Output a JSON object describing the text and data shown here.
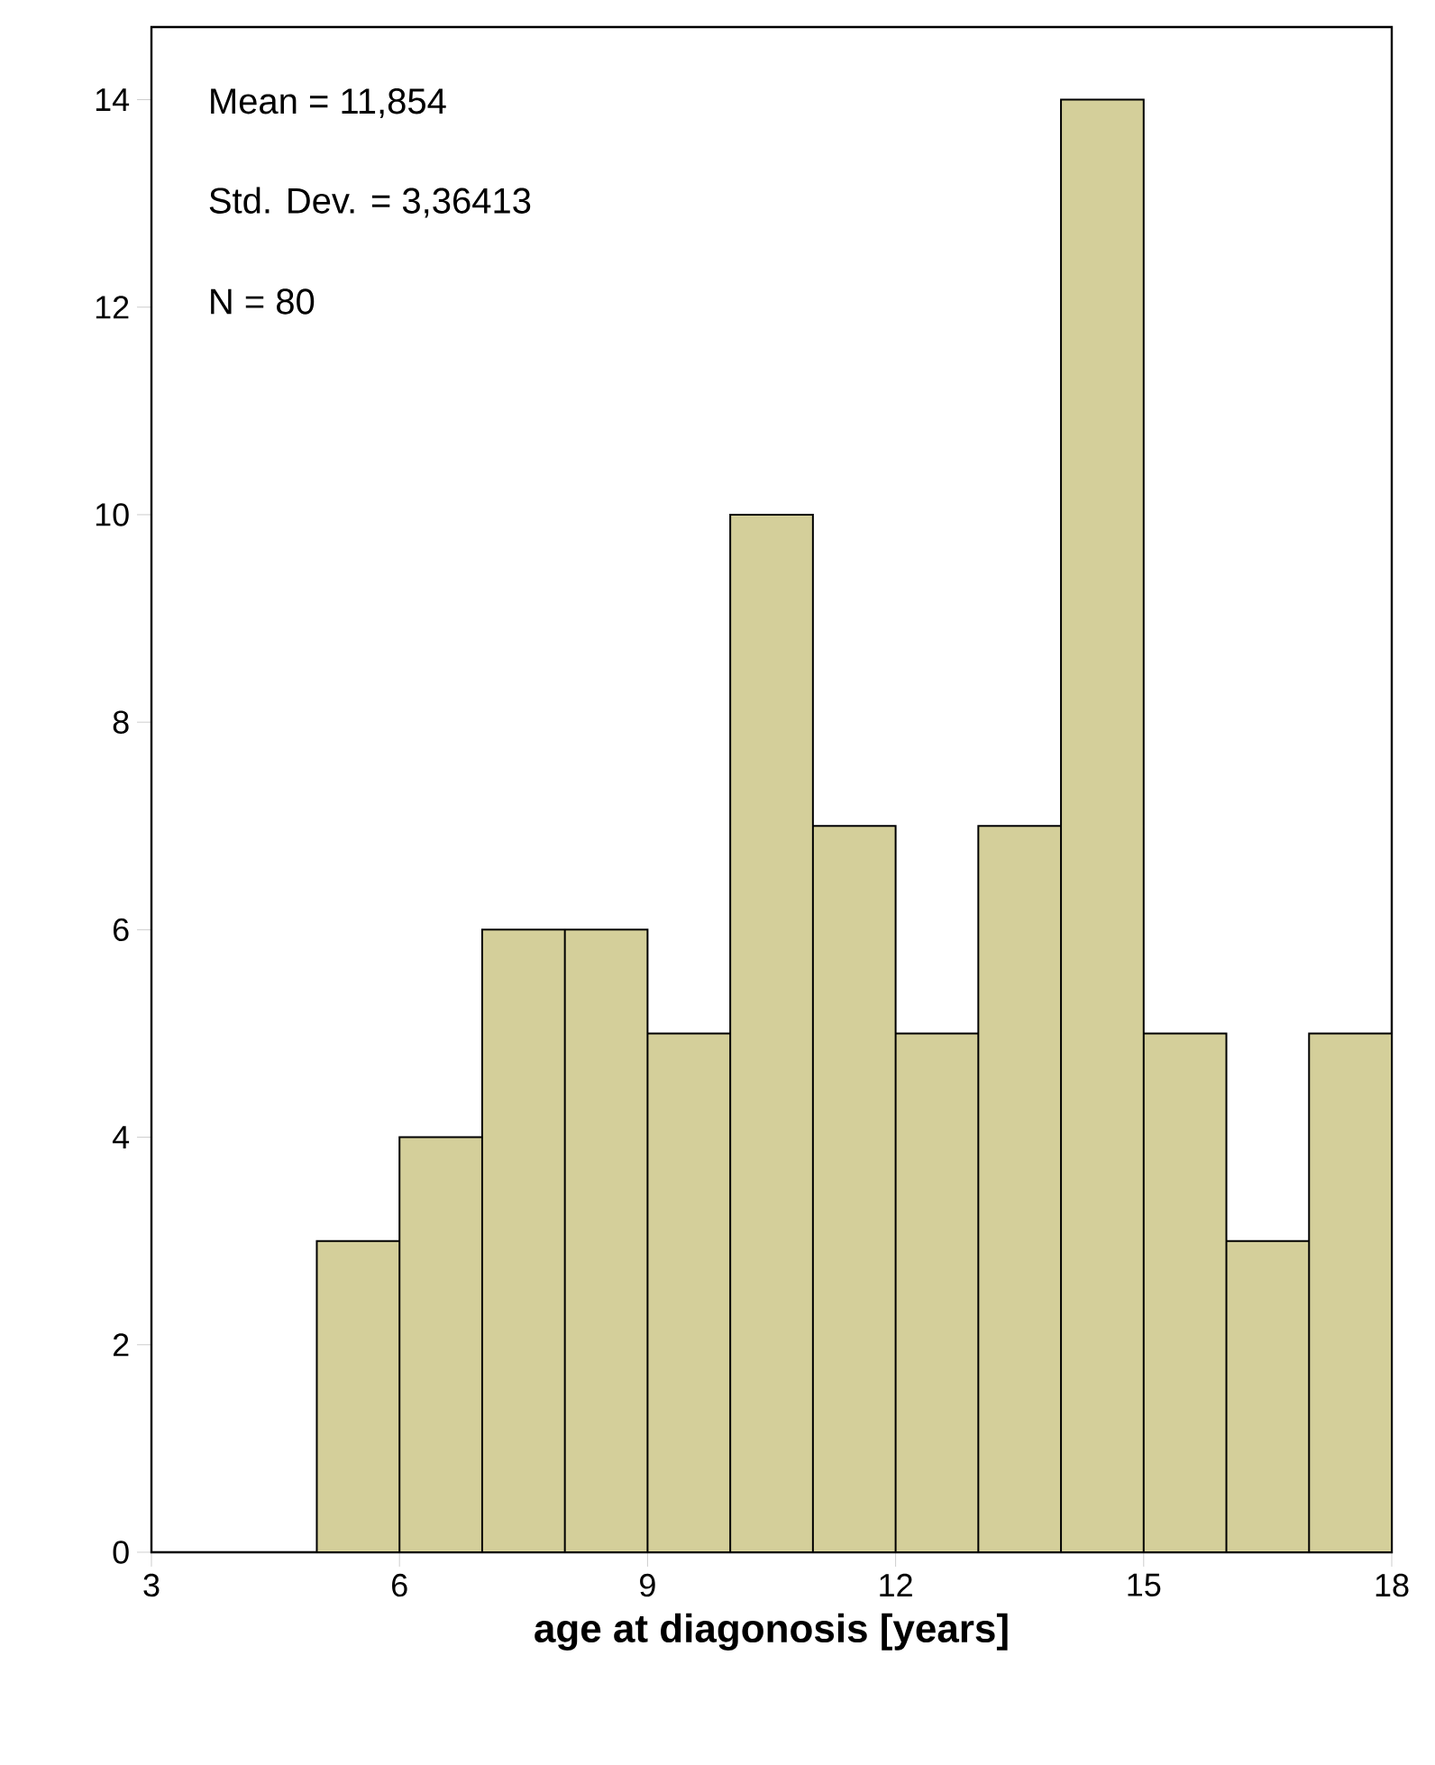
{
  "chart_data": {
    "type": "histogram",
    "xlabel": "age at diagonosis [years]",
    "bins": [
      5,
      6,
      7,
      8,
      9,
      10,
      11,
      12,
      13,
      14,
      15,
      16,
      17,
      18
    ],
    "values": [
      3,
      4,
      6,
      6,
      5,
      10,
      7,
      5,
      7,
      14,
      5,
      3,
      5
    ],
    "color": "#d4cf9a",
    "xlim": [
      3,
      18
    ],
    "ylim": [
      0,
      14.7
    ],
    "xticks": [
      3,
      6,
      9,
      12,
      15,
      18
    ],
    "yticks": [
      0,
      2,
      4,
      6,
      8,
      10,
      12,
      14
    ],
    "grid": false,
    "annotations": [
      "Mean = 11,854",
      "Std. Dev. = 3,36413",
      "N = 80"
    ]
  }
}
